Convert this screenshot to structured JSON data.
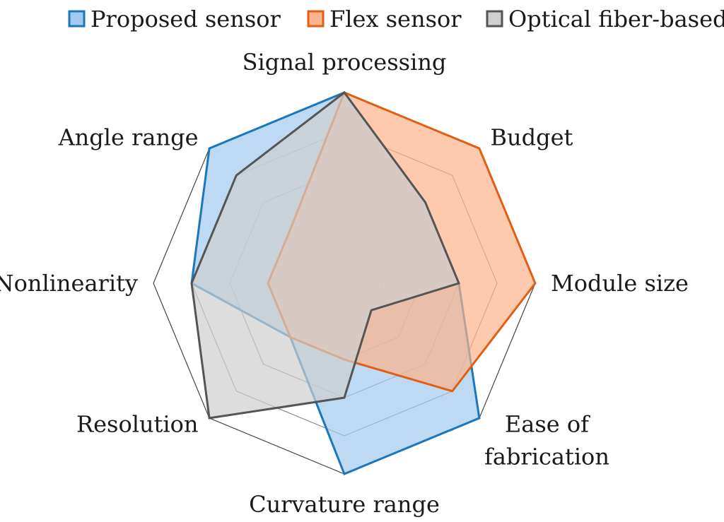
{
  "chart_data": {
    "type": "radar",
    "title": "",
    "axes": [
      [
        "Signal processing"
      ],
      [
        "Budget"
      ],
      [
        "Module size"
      ],
      [
        "Ease of",
        "fabrication"
      ],
      [
        "Curvature range"
      ],
      [
        "Resolution"
      ],
      [
        "Nonlinearity"
      ],
      [
        "Angle range"
      ]
    ],
    "levels": 5,
    "range": [
      0,
      5
    ],
    "grid": true,
    "legend_position": "top",
    "series": [
      {
        "name": "Proposed sensor",
        "values": [
          5,
          3,
          3,
          5,
          5,
          2,
          4,
          5
        ],
        "color": "#1a77bb",
        "fill": "#a1cbec"
      },
      {
        "name": "Flex sensor",
        "values": [
          5,
          5,
          5,
          4,
          2,
          2,
          2,
          2
        ],
        "color": "#e15f14",
        "fill": "#fdb48c"
      },
      {
        "name": "Optical fiber-based",
        "values": [
          5,
          3,
          3,
          1,
          3,
          5,
          4,
          4
        ],
        "color": "#555555",
        "fill": "#cfcfcf"
      }
    ]
  }
}
